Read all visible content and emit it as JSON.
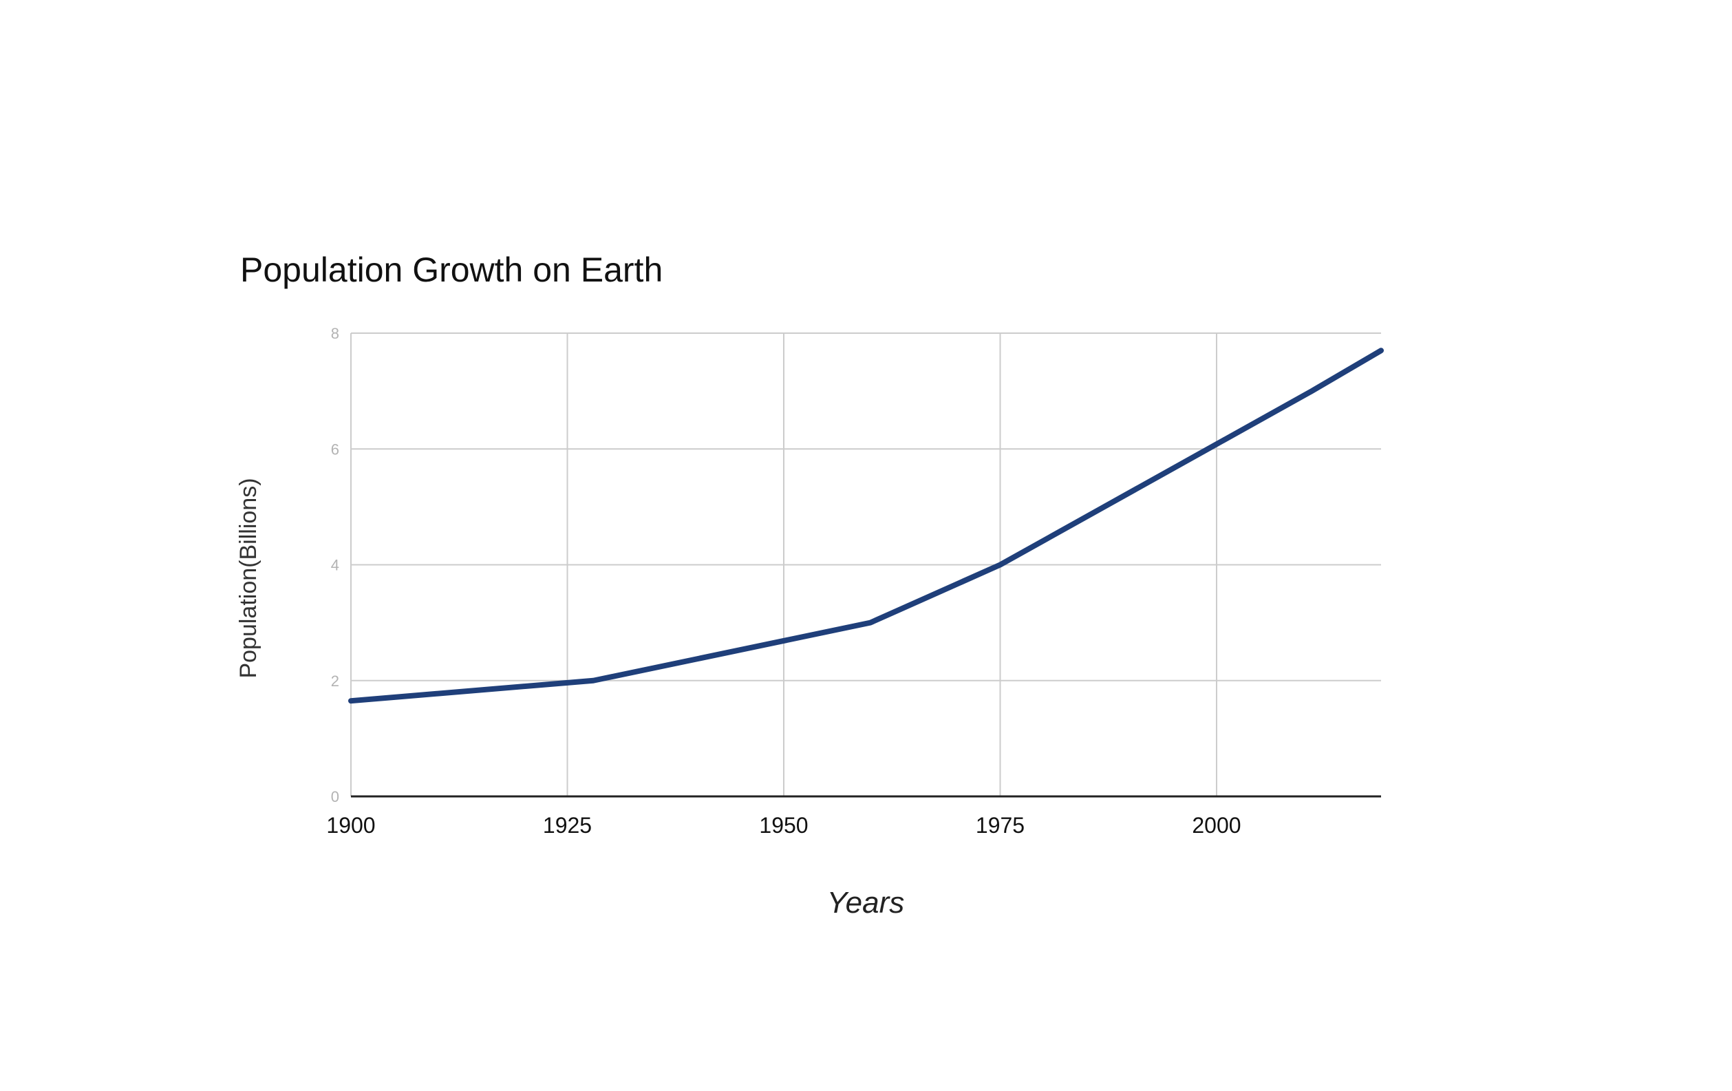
{
  "chart_data": {
    "type": "line",
    "title": "Population Growth on Earth",
    "xlabel": "Years",
    "ylabel": "Population(Billions)",
    "xlim": [
      1900,
      2019
    ],
    "ylim": [
      0,
      8
    ],
    "x_ticks": [
      "1900",
      "1925",
      "1950",
      "1975",
      "2000"
    ],
    "x_tick_values": [
      1900,
      1925,
      1950,
      1975,
      2000
    ],
    "y_ticks": [
      "0",
      "2",
      "4",
      "6",
      "8"
    ],
    "y_tick_values": [
      0,
      2,
      4,
      6,
      8
    ],
    "grid": true,
    "legend": "none",
    "series": [
      {
        "x": [
          1900,
          1928,
          1960,
          1975,
          1987,
          1999,
          2011,
          2019
        ],
        "y": [
          1.65,
          2.0,
          3.0,
          4.0,
          5.0,
          6.0,
          7.0,
          7.7
        ],
        "color": "#1f3f7a"
      }
    ],
    "grid_color": "#cccccc",
    "axis_color": "#222222"
  }
}
